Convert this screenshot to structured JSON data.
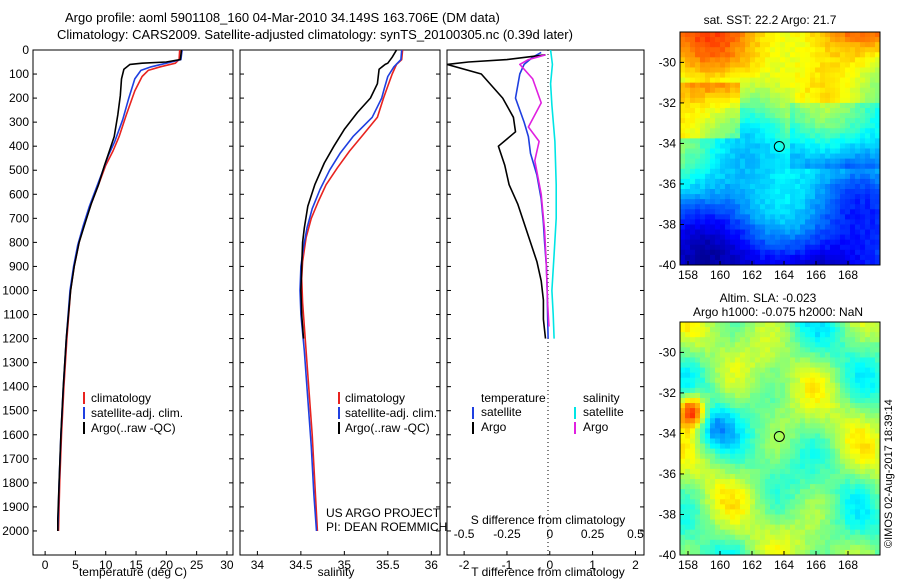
{
  "header": {
    "line1": "Argo profile: aoml 5901108_160 04-Mar-2010 34.149S 163.706E (DM data)",
    "line2": "Climatology: CARS2009. Satellite-adjusted climatology: synTS_20100305.nc (0.39d later)"
  },
  "credit": "©IMOS 02-Aug-2017 18:39:14",
  "project": {
    "line1": "US ARGO PROJECT",
    "line2": "PI: DEAN ROEMMICH"
  },
  "colors": {
    "climatology": "#e8231f",
    "satellite": "#1f3fe0",
    "argo": "#000000",
    "sat_salinity": "#00e5e5",
    "argo_salinity": "#e020e0"
  },
  "chart_data": [
    {
      "type": "line",
      "xlabel": "temperature (deg C)",
      "ylabel": "",
      "xlim": [
        -2,
        31
      ],
      "ylim": [
        2100,
        0
      ],
      "xticks": [
        0,
        5,
        10,
        15,
        20,
        25,
        30
      ],
      "yticks": [
        0,
        100,
        200,
        300,
        400,
        500,
        600,
        700,
        800,
        900,
        1000,
        1100,
        1200,
        1300,
        1400,
        1500,
        1600,
        1700,
        1800,
        1900,
        2000
      ],
      "legend": [
        "climatology",
        "satellite-adj. clim.",
        "Argo(..raw -QC)"
      ],
      "series": [
        {
          "name": "climatology",
          "color": "#e8231f",
          "points": [
            [
              22.2,
              0
            ],
            [
              22.1,
              40
            ],
            [
              21.5,
              55
            ],
            [
              19,
              70
            ],
            [
              17,
              85
            ],
            [
              16,
              110
            ],
            [
              14.8,
              170
            ],
            [
              13.4,
              270
            ],
            [
              12.2,
              360
            ],
            [
              11.2,
              420
            ],
            [
              10,
              480
            ],
            [
              8.8,
              560
            ],
            [
              7.6,
              640
            ],
            [
              6.5,
              720
            ],
            [
              5.6,
              800
            ],
            [
              4.8,
              900
            ],
            [
              4.2,
              1000
            ],
            [
              3.6,
              1200
            ],
            [
              3.1,
              1400
            ],
            [
              2.7,
              1600
            ],
            [
              2.4,
              1800
            ],
            [
              2.2,
              2000
            ]
          ]
        },
        {
          "name": "satellite-adj. clim.",
          "color": "#1f3fe0",
          "points": [
            [
              22.6,
              0
            ],
            [
              22.4,
              40
            ],
            [
              20,
              55
            ],
            [
              17.5,
              70
            ],
            [
              15.8,
              85
            ],
            [
              14.8,
              120
            ],
            [
              13.8,
              200
            ],
            [
              12.8,
              290
            ],
            [
              11.5,
              380
            ],
            [
              10.4,
              440
            ],
            [
              9.4,
              510
            ],
            [
              8.5,
              570
            ],
            [
              7.3,
              650
            ],
            [
              6.3,
              730
            ],
            [
              5.4,
              810
            ],
            [
              4.7,
              900
            ],
            [
              4.1,
              1000
            ],
            [
              3.5,
              1200
            ],
            [
              3,
              1400
            ],
            [
              2.6,
              1600
            ],
            [
              2.3,
              1800
            ],
            [
              2.1,
              2000
            ]
          ]
        },
        {
          "name": "Argo(..raw -QC)",
          "color": "#000000",
          "points": [
            [
              22.5,
              0
            ],
            [
              22.3,
              40
            ],
            [
              20,
              50
            ],
            [
              16,
              55
            ],
            [
              14,
              60
            ],
            [
              13,
              80
            ],
            [
              12.6,
              120
            ],
            [
              12.4,
              190
            ],
            [
              12,
              270
            ],
            [
              11.4,
              360
            ],
            [
              10.6,
              420
            ],
            [
              9.8,
              480
            ],
            [
              8.8,
              560
            ],
            [
              7.6,
              640
            ],
            [
              6.6,
              720
            ],
            [
              5.6,
              800
            ],
            [
              4.8,
              900
            ],
            [
              4.2,
              1000
            ],
            [
              3.5,
              1200
            ],
            [
              3,
              1400
            ],
            [
              2.6,
              1600
            ],
            [
              2.3,
              1800
            ],
            [
              2.1,
              1950
            ],
            [
              2.1,
              2000
            ]
          ]
        }
      ]
    },
    {
      "type": "line",
      "xlabel": "salinity",
      "ylabel": "",
      "xlim": [
        33.8,
        36.1
      ],
      "ylim": [
        2100,
        0
      ],
      "xticks": [
        34,
        34.5,
        35,
        35.5,
        36
      ],
      "legend": [
        "climatology",
        "satellite-adj. clim.",
        "Argo(..raw -QC)"
      ],
      "series": [
        {
          "name": "climatology",
          "color": "#e8231f",
          "points": [
            [
              35.67,
              0
            ],
            [
              35.66,
              40
            ],
            [
              35.6,
              60
            ],
            [
              35.55,
              100
            ],
            [
              35.5,
              150
            ],
            [
              35.45,
              200
            ],
            [
              35.38,
              280
            ],
            [
              35.22,
              350
            ],
            [
              35.06,
              420
            ],
            [
              34.92,
              490
            ],
            [
              34.79,
              560
            ],
            [
              34.7,
              630
            ],
            [
              34.62,
              700
            ],
            [
              34.56,
              780
            ],
            [
              34.52,
              880
            ],
            [
              34.51,
              950
            ],
            [
              34.52,
              1050
            ],
            [
              34.55,
              1200
            ],
            [
              34.59,
              1400
            ],
            [
              34.63,
              1600
            ],
            [
              34.66,
              1800
            ],
            [
              34.69,
              2000
            ]
          ]
        },
        {
          "name": "satellite-adj. clim.",
          "color": "#1f3fe0",
          "points": [
            [
              35.66,
              0
            ],
            [
              35.65,
              40
            ],
            [
              35.57,
              70
            ],
            [
              35.5,
              110
            ],
            [
              35.46,
              160
            ],
            [
              35.43,
              200
            ],
            [
              35.32,
              280
            ],
            [
              35.1,
              360
            ],
            [
              34.95,
              430
            ],
            [
              34.83,
              500
            ],
            [
              34.72,
              580
            ],
            [
              34.63,
              660
            ],
            [
              34.57,
              740
            ],
            [
              34.53,
              820
            ],
            [
              34.5,
              900
            ],
            [
              34.49,
              1000
            ],
            [
              34.5,
              1100
            ],
            [
              34.54,
              1250
            ],
            [
              34.58,
              1450
            ],
            [
              34.62,
              1650
            ],
            [
              34.65,
              1850
            ],
            [
              34.68,
              2000
            ]
          ]
        },
        {
          "name": "Argo(..raw -QC)",
          "color": "#000000",
          "points": [
            [
              35.6,
              0
            ],
            [
              35.55,
              30
            ],
            [
              35.5,
              55
            ],
            [
              35.47,
              60
            ],
            [
              35.4,
              80
            ],
            [
              35.38,
              140
            ],
            [
              35.3,
              200
            ],
            [
              35.15,
              260
            ],
            [
              35,
              330
            ],
            [
              34.88,
              400
            ],
            [
              34.77,
              470
            ],
            [
              34.66,
              560
            ],
            [
              34.58,
              650
            ],
            [
              34.54,
              740
            ],
            [
              34.52,
              800
            ],
            [
              34.51,
              900
            ],
            [
              34.5,
              1000
            ],
            [
              34.51,
              1100
            ],
            [
              34.53,
              1200
            ]
          ]
        }
      ]
    },
    {
      "type": "line",
      "xlabel": "T difference from climatology",
      "ylabel": "",
      "title": "S difference from climatology",
      "xlim": [
        -2.4,
        2.2
      ],
      "ylim": [
        2100,
        0
      ],
      "xticks": [
        -2,
        -1,
        0,
        1,
        2
      ],
      "top_ticks": [
        -0.5,
        -0.25,
        0,
        0.25,
        0.5
      ],
      "legend_title_left": "temperature",
      "legend_title_right": "salinity",
      "legend_left": [
        "satellite",
        "Argo"
      ],
      "legend_right": [
        "satellite",
        "Argo"
      ],
      "series": [
        {
          "name": "satellite",
          "color": "#1f3fe0",
          "points": [
            [
              -0.2,
              10
            ],
            [
              -0.4,
              30
            ],
            [
              -0.6,
              60
            ],
            [
              -0.7,
              100
            ],
            [
              -0.8,
              200
            ],
            [
              -0.6,
              300
            ],
            [
              -0.5,
              360
            ],
            [
              -0.45,
              430
            ],
            [
              -0.3,
              520
            ],
            [
              -0.2,
              620
            ],
            [
              -0.15,
              720
            ],
            [
              -0.12,
              800
            ],
            [
              -0.08,
              900
            ],
            [
              -0.06,
              1000
            ],
            [
              -0.05,
              1100
            ],
            [
              -0.04,
              1200
            ]
          ]
        },
        {
          "name": "Argo",
          "color": "#000000",
          "points": [
            [
              -0.1,
              20
            ],
            [
              -1,
              40
            ],
            [
              -1.9,
              50
            ],
            [
              -2.4,
              60
            ],
            [
              -1.6,
              100
            ],
            [
              -1.1,
              200
            ],
            [
              -0.85,
              280
            ],
            [
              -0.8,
              340
            ],
            [
              -1.2,
              400
            ],
            [
              -1.05,
              480
            ],
            [
              -0.95,
              560
            ],
            [
              -0.75,
              640
            ],
            [
              -0.6,
              720
            ],
            [
              -0.45,
              800
            ],
            [
              -0.3,
              880
            ],
            [
              -0.2,
              960
            ],
            [
              -0.15,
              1040
            ],
            [
              -0.15,
              1120
            ],
            [
              -0.1,
              1200
            ]
          ]
        },
        {
          "name": "satellite",
          "color": "#00e5e5",
          "points": [
            [
              0.02,
              0
            ],
            [
              0.06,
              60
            ],
            [
              0.02,
              140
            ],
            [
              0.05,
              230
            ],
            [
              0.12,
              380
            ],
            [
              0.15,
              560
            ],
            [
              0.15,
              700
            ],
            [
              0.1,
              850
            ],
            [
              0.05,
              1000
            ],
            [
              0.08,
              1100
            ],
            [
              0.1,
              1200
            ]
          ]
        },
        {
          "name": "Argo",
          "color": "#e020e0",
          "points": [
            [
              -0.1,
              20
            ],
            [
              -0.5,
              40
            ],
            [
              -0.7,
              60
            ],
            [
              -0.4,
              120
            ],
            [
              -0.2,
              220
            ],
            [
              -0.5,
              320
            ],
            [
              -0.25,
              380
            ],
            [
              -0.35,
              460
            ],
            [
              -0.2,
              600
            ],
            [
              -0.12,
              750
            ],
            [
              -0.08,
              900
            ],
            [
              -0.05,
              1050
            ],
            [
              -0.02,
              1150
            ]
          ]
        }
      ]
    },
    {
      "type": "heatmap",
      "title": "sat. SST: 22.2  Argo: 21.7",
      "xlim": [
        157.5,
        170
      ],
      "ylim": [
        -40,
        -28.5
      ],
      "xticks": [
        158,
        160,
        162,
        164,
        166,
        168
      ],
      "yticks": [
        -30,
        -32,
        -34,
        -36,
        -38,
        -40
      ],
      "marker": [
        163.706,
        -34.149
      ]
    },
    {
      "type": "heatmap",
      "title": "Altim. SLA: -0.023",
      "subtitle": "Argo h1000: -0.075 h2000: NaN",
      "xlim": [
        157.5,
        170
      ],
      "ylim": [
        -40,
        -28.5
      ],
      "xticks": [
        158,
        160,
        162,
        164,
        166,
        168
      ],
      "yticks": [
        -30,
        -32,
        -34,
        -36,
        -38,
        -40
      ],
      "marker": [
        163.706,
        -34.149
      ]
    }
  ]
}
